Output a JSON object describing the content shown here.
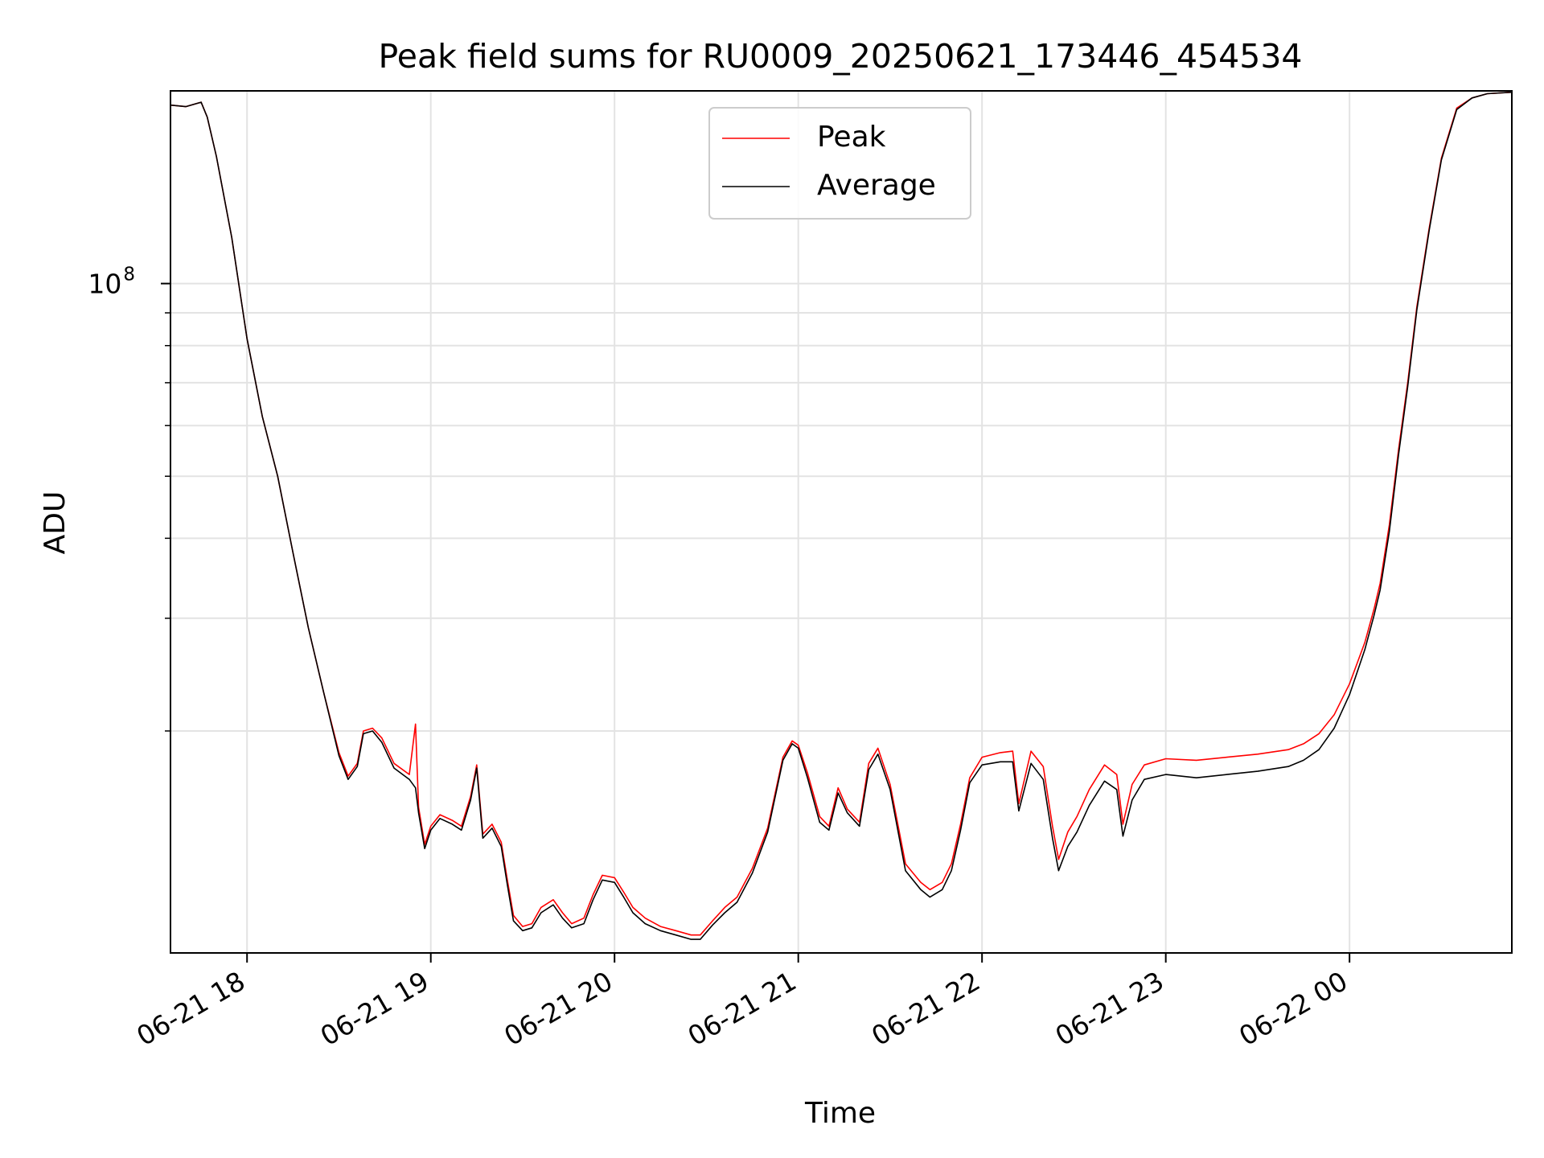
{
  "chart_data": {
    "type": "line",
    "title": "Peak field sums for RU0009_20250621_173446_454534",
    "xlabel": "Time",
    "ylabel": "ADU",
    "yscale": "log",
    "xlim": [
      "2025-06-21T17:35",
      "2025-06-22T00:53"
    ],
    "ylim": [
      9000000,
      200000000
    ],
    "grid": true,
    "legend_position": "upper-center",
    "x_ticks": [
      {
        "t": "2025-06-21T18:00",
        "label": "06-21 18"
      },
      {
        "t": "2025-06-21T19:00",
        "label": "06-21 19"
      },
      {
        "t": "2025-06-21T20:00",
        "label": "06-21 20"
      },
      {
        "t": "2025-06-21T21:00",
        "label": "06-21 21"
      },
      {
        "t": "2025-06-21T22:00",
        "label": "06-21 22"
      },
      {
        "t": "2025-06-21T23:00",
        "label": "06-21 23"
      },
      {
        "t": "2025-06-22T00:00",
        "label": "06-22 00"
      }
    ],
    "y_major_ticks": [
      {
        "value": 100000000,
        "base": "10",
        "exponent": "8"
      }
    ],
    "y_minor_ticks": [
      20000000,
      30000000,
      40000000,
      50000000,
      60000000,
      70000000,
      80000000,
      90000000
    ],
    "series": [
      {
        "name": "Peak",
        "color": "#ff0000",
        "points": [
          [
            "2025-06-21T17:35",
            190000000
          ],
          [
            "2025-06-21T17:40",
            189000000
          ],
          [
            "2025-06-21T17:45",
            192000000
          ],
          [
            "2025-06-21T17:47",
            182000000
          ],
          [
            "2025-06-21T17:50",
            158000000
          ],
          [
            "2025-06-21T17:55",
            118000000
          ],
          [
            "2025-06-21T18:00",
            82000000
          ],
          [
            "2025-06-21T18:05",
            62000000
          ],
          [
            "2025-06-21T18:10",
            50000000
          ],
          [
            "2025-06-21T18:15",
            38000000
          ],
          [
            "2025-06-21T18:20",
            29000000
          ],
          [
            "2025-06-21T18:25",
            23000000
          ],
          [
            "2025-06-21T18:30",
            18500000
          ],
          [
            "2025-06-21T18:33",
            17000000
          ],
          [
            "2025-06-21T18:36",
            17800000
          ],
          [
            "2025-06-21T18:38",
            20000000
          ],
          [
            "2025-06-21T18:41",
            20200000
          ],
          [
            "2025-06-21T18:44",
            19500000
          ],
          [
            "2025-06-21T18:48",
            17800000
          ],
          [
            "2025-06-21T18:53",
            17100000
          ],
          [
            "2025-06-21T18:55",
            20500000
          ],
          [
            "2025-06-21T18:56",
            15200000
          ],
          [
            "2025-06-21T18:58",
            13300000
          ],
          [
            "2025-06-21T19:00",
            14200000
          ],
          [
            "2025-06-21T19:03",
            14800000
          ],
          [
            "2025-06-21T19:07",
            14500000
          ],
          [
            "2025-06-21T19:10",
            14200000
          ],
          [
            "2025-06-21T19:13",
            15800000
          ],
          [
            "2025-06-21T19:15",
            17700000
          ],
          [
            "2025-06-21T19:17",
            13800000
          ],
          [
            "2025-06-21T19:20",
            14300000
          ],
          [
            "2025-06-21T19:23",
            13400000
          ],
          [
            "2025-06-21T19:25",
            11700000
          ],
          [
            "2025-06-21T19:27",
            10300000
          ],
          [
            "2025-06-21T19:30",
            9900000
          ],
          [
            "2025-06-21T19:33",
            10000000
          ],
          [
            "2025-06-21T19:36",
            10600000
          ],
          [
            "2025-06-21T19:40",
            10900000
          ],
          [
            "2025-06-21T19:43",
            10400000
          ],
          [
            "2025-06-21T19:46",
            10000000
          ],
          [
            "2025-06-21T19:50",
            10200000
          ],
          [
            "2025-06-21T19:53",
            11100000
          ],
          [
            "2025-06-21T19:56",
            11900000
          ],
          [
            "2025-06-21T20:00",
            11800000
          ],
          [
            "2025-06-21T20:03",
            11200000
          ],
          [
            "2025-06-21T20:06",
            10600000
          ],
          [
            "2025-06-21T20:10",
            10200000
          ],
          [
            "2025-06-21T20:15",
            9900000
          ],
          [
            "2025-06-21T20:20",
            9750000
          ],
          [
            "2025-06-21T20:25",
            9600000
          ],
          [
            "2025-06-21T20:28",
            9600000
          ],
          [
            "2025-06-21T20:32",
            10100000
          ],
          [
            "2025-06-21T20:36",
            10600000
          ],
          [
            "2025-06-21T20:40",
            11000000
          ],
          [
            "2025-06-21T20:45",
            12200000
          ],
          [
            "2025-06-21T20:50",
            14100000
          ],
          [
            "2025-06-21T20:55",
            18200000
          ],
          [
            "2025-06-21T20:58",
            19300000
          ],
          [
            "2025-06-21T21:00",
            19000000
          ],
          [
            "2025-06-21T21:03",
            17200000
          ],
          [
            "2025-06-21T21:07",
            14700000
          ],
          [
            "2025-06-21T21:10",
            14200000
          ],
          [
            "2025-06-21T21:13",
            16300000
          ],
          [
            "2025-06-21T21:16",
            15100000
          ],
          [
            "2025-06-21T21:20",
            14400000
          ],
          [
            "2025-06-21T21:23",
            17800000
          ],
          [
            "2025-06-21T21:26",
            18800000
          ],
          [
            "2025-06-21T21:30",
            16500000
          ],
          [
            "2025-06-21T21:35",
            12400000
          ],
          [
            "2025-06-21T21:40",
            11600000
          ],
          [
            "2025-06-21T21:43",
            11300000
          ],
          [
            "2025-06-21T21:47",
            11600000
          ],
          [
            "2025-06-21T21:50",
            12400000
          ],
          [
            "2025-06-21T21:53",
            14300000
          ],
          [
            "2025-06-21T21:56",
            16900000
          ],
          [
            "2025-06-21T22:00",
            18200000
          ],
          [
            "2025-06-21T22:06",
            18500000
          ],
          [
            "2025-06-21T22:10",
            18600000
          ],
          [
            "2025-06-21T22:12",
            15400000
          ],
          [
            "2025-06-21T22:16",
            18600000
          ],
          [
            "2025-06-21T22:20",
            17600000
          ],
          [
            "2025-06-21T22:23",
            14200000
          ],
          [
            "2025-06-21T22:25",
            12600000
          ],
          [
            "2025-06-21T22:28",
            13900000
          ],
          [
            "2025-06-21T22:31",
            14700000
          ],
          [
            "2025-06-21T22:35",
            16200000
          ],
          [
            "2025-06-21T22:40",
            17700000
          ],
          [
            "2025-06-21T22:44",
            17100000
          ],
          [
            "2025-06-21T22:46",
            14300000
          ],
          [
            "2025-06-21T22:49",
            16500000
          ],
          [
            "2025-06-21T22:53",
            17700000
          ],
          [
            "2025-06-21T23:00",
            18100000
          ],
          [
            "2025-06-21T23:10",
            18000000
          ],
          [
            "2025-06-21T23:20",
            18200000
          ],
          [
            "2025-06-21T23:30",
            18400000
          ],
          [
            "2025-06-21T23:40",
            18700000
          ],
          [
            "2025-06-21T23:45",
            19100000
          ],
          [
            "2025-06-21T23:50",
            19800000
          ],
          [
            "2025-06-21T23:55",
            21200000
          ],
          [
            "2025-06-22T00:00",
            23700000
          ],
          [
            "2025-06-22T00:05",
            27500000
          ],
          [
            "2025-06-22T00:08",
            31000000
          ],
          [
            "2025-06-22T00:10",
            34000000
          ],
          [
            "2025-06-22T00:13",
            42000000
          ],
          [
            "2025-06-22T00:16",
            55000000
          ],
          [
            "2025-06-22T00:19",
            70000000
          ],
          [
            "2025-06-22T00:22",
            92000000
          ],
          [
            "2025-06-22T00:26",
            122000000
          ],
          [
            "2025-06-22T00:30",
            157000000
          ],
          [
            "2025-06-22T00:35",
            188000000
          ],
          [
            "2025-06-22T00:40",
            195000000
          ],
          [
            "2025-06-22T00:45",
            198000000
          ],
          [
            "2025-06-22T00:53",
            199000000
          ]
        ]
      },
      {
        "name": "Average",
        "color": "#000000",
        "points": [
          [
            "2025-06-21T17:35",
            190000000
          ],
          [
            "2025-06-21T17:40",
            189000000
          ],
          [
            "2025-06-21T17:45",
            192000000
          ],
          [
            "2025-06-21T17:47",
            182000000
          ],
          [
            "2025-06-21T17:50",
            158000000
          ],
          [
            "2025-06-21T17:55",
            118000000
          ],
          [
            "2025-06-21T18:00",
            82000000
          ],
          [
            "2025-06-21T18:05",
            62000000
          ],
          [
            "2025-06-21T18:10",
            50000000
          ],
          [
            "2025-06-21T18:15",
            38000000
          ],
          [
            "2025-06-21T18:20",
            29000000
          ],
          [
            "2025-06-21T18:25",
            23000000
          ],
          [
            "2025-06-21T18:30",
            18300000
          ],
          [
            "2025-06-21T18:33",
            16800000
          ],
          [
            "2025-06-21T18:36",
            17600000
          ],
          [
            "2025-06-21T18:38",
            19800000
          ],
          [
            "2025-06-21T18:41",
            20000000
          ],
          [
            "2025-06-21T18:44",
            19200000
          ],
          [
            "2025-06-21T18:48",
            17500000
          ],
          [
            "2025-06-21T18:53",
            16800000
          ],
          [
            "2025-06-21T18:55",
            16300000
          ],
          [
            "2025-06-21T18:56",
            14900000
          ],
          [
            "2025-06-21T18:58",
            13100000
          ],
          [
            "2025-06-21T19:00",
            14000000
          ],
          [
            "2025-06-21T19:03",
            14600000
          ],
          [
            "2025-06-21T19:07",
            14300000
          ],
          [
            "2025-06-21T19:10",
            14000000
          ],
          [
            "2025-06-21T19:13",
            15600000
          ],
          [
            "2025-06-21T19:15",
            17500000
          ],
          [
            "2025-06-21T19:17",
            13600000
          ],
          [
            "2025-06-21T19:20",
            14100000
          ],
          [
            "2025-06-21T19:23",
            13200000
          ],
          [
            "2025-06-21T19:25",
            11500000
          ],
          [
            "2025-06-21T19:27",
            10100000
          ],
          [
            "2025-06-21T19:30",
            9750000
          ],
          [
            "2025-06-21T19:33",
            9850000
          ],
          [
            "2025-06-21T19:36",
            10400000
          ],
          [
            "2025-06-21T19:40",
            10700000
          ],
          [
            "2025-06-21T19:43",
            10200000
          ],
          [
            "2025-06-21T19:46",
            9850000
          ],
          [
            "2025-06-21T19:50",
            10000000
          ],
          [
            "2025-06-21T19:53",
            10900000
          ],
          [
            "2025-06-21T19:56",
            11700000
          ],
          [
            "2025-06-21T20:00",
            11600000
          ],
          [
            "2025-06-21T20:03",
            11000000
          ],
          [
            "2025-06-21T20:06",
            10400000
          ],
          [
            "2025-06-21T20:10",
            10000000
          ],
          [
            "2025-06-21T20:15",
            9750000
          ],
          [
            "2025-06-21T20:20",
            9600000
          ],
          [
            "2025-06-21T20:25",
            9450000
          ],
          [
            "2025-06-21T20:28",
            9450000
          ],
          [
            "2025-06-21T20:32",
            9950000
          ],
          [
            "2025-06-21T20:36",
            10400000
          ],
          [
            "2025-06-21T20:40",
            10800000
          ],
          [
            "2025-06-21T20:45",
            12000000
          ],
          [
            "2025-06-21T20:50",
            13900000
          ],
          [
            "2025-06-21T20:55",
            18000000
          ],
          [
            "2025-06-21T20:58",
            19100000
          ],
          [
            "2025-06-21T21:00",
            18800000
          ],
          [
            "2025-06-21T21:03",
            16900000
          ],
          [
            "2025-06-21T21:07",
            14400000
          ],
          [
            "2025-06-21T21:10",
            14000000
          ],
          [
            "2025-06-21T21:13",
            16000000
          ],
          [
            "2025-06-21T21:16",
            14900000
          ],
          [
            "2025-06-21T21:20",
            14200000
          ],
          [
            "2025-06-21T21:23",
            17400000
          ],
          [
            "2025-06-21T21:26",
            18400000
          ],
          [
            "2025-06-21T21:30",
            16200000
          ],
          [
            "2025-06-21T21:35",
            12100000
          ],
          [
            "2025-06-21T21:40",
            11300000
          ],
          [
            "2025-06-21T21:43",
            11000000
          ],
          [
            "2025-06-21T21:47",
            11300000
          ],
          [
            "2025-06-21T21:50",
            12100000
          ],
          [
            "2025-06-21T21:53",
            14000000
          ],
          [
            "2025-06-21T21:56",
            16600000
          ],
          [
            "2025-06-21T22:00",
            17700000
          ],
          [
            "2025-06-21T22:06",
            17900000
          ],
          [
            "2025-06-21T22:10",
            17900000
          ],
          [
            "2025-06-21T22:12",
            15000000
          ],
          [
            "2025-06-21T22:16",
            17800000
          ],
          [
            "2025-06-21T22:20",
            16800000
          ],
          [
            "2025-06-21T22:23",
            13600000
          ],
          [
            "2025-06-21T22:25",
            12100000
          ],
          [
            "2025-06-21T22:28",
            13200000
          ],
          [
            "2025-06-21T22:31",
            13900000
          ],
          [
            "2025-06-21T22:35",
            15300000
          ],
          [
            "2025-06-21T22:40",
            16700000
          ],
          [
            "2025-06-21T22:44",
            16200000
          ],
          [
            "2025-06-21T22:46",
            13700000
          ],
          [
            "2025-06-21T22:49",
            15600000
          ],
          [
            "2025-06-21T22:53",
            16800000
          ],
          [
            "2025-06-21T23:00",
            17100000
          ],
          [
            "2025-06-21T23:10",
            16900000
          ],
          [
            "2025-06-21T23:20",
            17100000
          ],
          [
            "2025-06-21T23:30",
            17300000
          ],
          [
            "2025-06-21T23:40",
            17600000
          ],
          [
            "2025-06-21T23:45",
            18000000
          ],
          [
            "2025-06-21T23:50",
            18700000
          ],
          [
            "2025-06-21T23:55",
            20200000
          ],
          [
            "2025-06-22T00:00",
            22800000
          ],
          [
            "2025-06-22T00:05",
            26800000
          ],
          [
            "2025-06-22T00:08",
            30300000
          ],
          [
            "2025-06-22T00:10",
            33200000
          ],
          [
            "2025-06-22T00:13",
            41000000
          ],
          [
            "2025-06-22T00:16",
            54000000
          ],
          [
            "2025-06-22T00:19",
            69000000
          ],
          [
            "2025-06-22T00:22",
            91000000
          ],
          [
            "2025-06-22T00:26",
            121000000
          ],
          [
            "2025-06-22T00:30",
            156000000
          ],
          [
            "2025-06-22T00:35",
            187000000
          ],
          [
            "2025-06-22T00:40",
            195000000
          ],
          [
            "2025-06-22T00:45",
            198000000
          ],
          [
            "2025-06-22T00:53",
            199000000
          ]
        ]
      }
    ]
  }
}
